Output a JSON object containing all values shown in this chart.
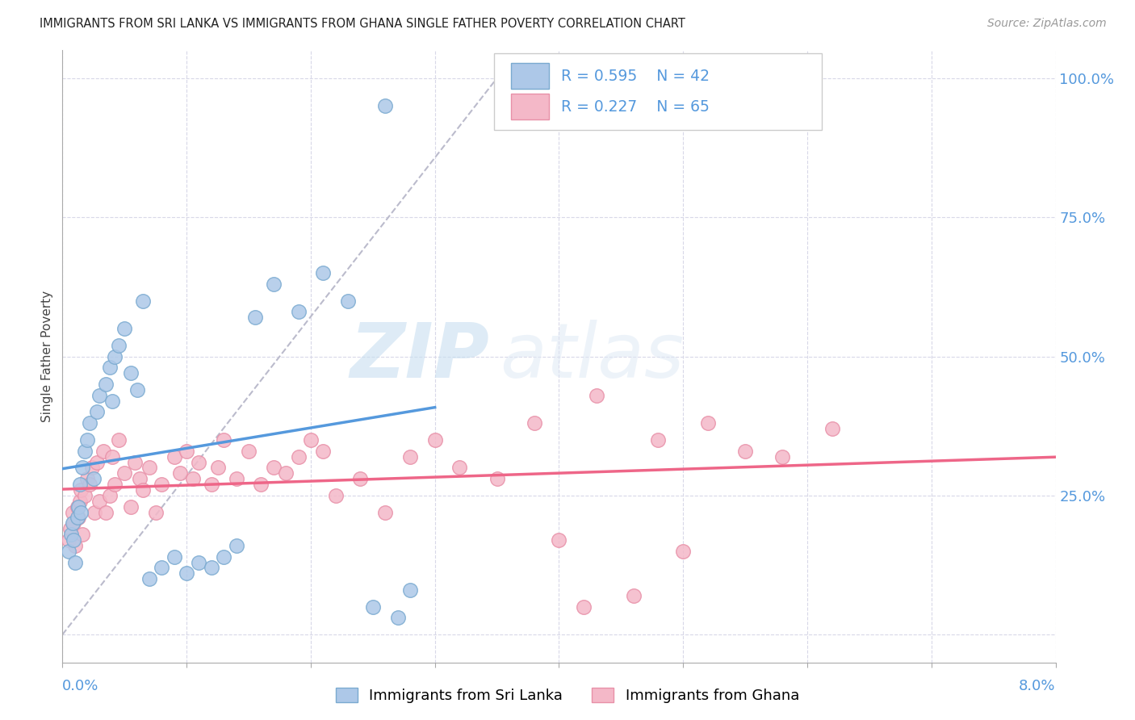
{
  "title": "IMMIGRANTS FROM SRI LANKA VS IMMIGRANTS FROM GHANA SINGLE FATHER POVERTY CORRELATION CHART",
  "source": "Source: ZipAtlas.com",
  "ylabel": "Single Father Poverty",
  "xlim": [
    0.0,
    8.0
  ],
  "ylim": [
    -5.0,
    105.0
  ],
  "x_tick_positions": [
    0,
    1,
    2,
    3,
    4,
    5,
    6,
    7,
    8
  ],
  "y_gridlines": [
    0,
    25,
    50,
    75,
    100
  ],
  "right_ytick_labels": [
    "100.0%",
    "75.0%",
    "50.0%",
    "25.0%"
  ],
  "right_ytick_vals": [
    100,
    75,
    50,
    25
  ],
  "sri_lanka_color": "#adc8e8",
  "sri_lanka_edge": "#7aaad0",
  "ghana_color": "#f4b8c8",
  "ghana_edge": "#e890a8",
  "trend_sri_lanka_color": "#5599dd",
  "trend_ghana_color": "#ee6688",
  "trend_diagonal_color": "#bbbbcc",
  "text_blue": "#5599dd",
  "R_sri": 0.595,
  "N_sri": 42,
  "R_gha": 0.227,
  "N_gha": 65,
  "watermark_zip": "ZIP",
  "watermark_atlas": "atlas",
  "sri_lanka_x": [
    0.05,
    0.07,
    0.08,
    0.09,
    0.1,
    0.12,
    0.13,
    0.14,
    0.15,
    0.16,
    0.18,
    0.2,
    0.22,
    0.25,
    0.28,
    0.3,
    0.35,
    0.38,
    0.4,
    0.42,
    0.45,
    0.5,
    0.55,
    0.6,
    0.65,
    0.7,
    0.8,
    0.9,
    1.0,
    1.1,
    1.2,
    1.3,
    1.4,
    1.55,
    1.7,
    1.9,
    2.1,
    2.3,
    2.6,
    2.8,
    2.5,
    2.7
  ],
  "sri_lanka_y": [
    15,
    18,
    20,
    17,
    13,
    21,
    23,
    27,
    22,
    30,
    33,
    35,
    38,
    28,
    40,
    43,
    45,
    48,
    42,
    50,
    52,
    55,
    47,
    44,
    60,
    10,
    12,
    14,
    11,
    13,
    12,
    14,
    16,
    57,
    63,
    58,
    65,
    60,
    95,
    8,
    5,
    3
  ],
  "ghana_x": [
    0.05,
    0.06,
    0.08,
    0.09,
    0.1,
    0.12,
    0.13,
    0.14,
    0.15,
    0.16,
    0.18,
    0.2,
    0.22,
    0.24,
    0.26,
    0.28,
    0.3,
    0.33,
    0.35,
    0.38,
    0.4,
    0.42,
    0.45,
    0.5,
    0.55,
    0.58,
    0.62,
    0.65,
    0.7,
    0.75,
    0.8,
    0.9,
    0.95,
    1.0,
    1.05,
    1.1,
    1.2,
    1.25,
    1.3,
    1.4,
    1.5,
    1.6,
    1.7,
    1.8,
    1.9,
    2.0,
    2.1,
    2.2,
    2.4,
    2.6,
    2.8,
    3.0,
    3.2,
    3.5,
    3.8,
    4.0,
    4.3,
    4.8,
    5.2,
    5.5,
    5.8,
    6.2,
    4.2,
    4.6,
    5.0
  ],
  "ghana_y": [
    17,
    19,
    22,
    20,
    16,
    23,
    21,
    24,
    26,
    18,
    25,
    28,
    27,
    30,
    22,
    31,
    24,
    33,
    22,
    25,
    32,
    27,
    35,
    29,
    23,
    31,
    28,
    26,
    30,
    22,
    27,
    32,
    29,
    33,
    28,
    31,
    27,
    30,
    35,
    28,
    33,
    27,
    30,
    29,
    32,
    35,
    33,
    25,
    28,
    22,
    32,
    35,
    30,
    28,
    38,
    17,
    43,
    35,
    38,
    33,
    32,
    37,
    5,
    7,
    15
  ]
}
